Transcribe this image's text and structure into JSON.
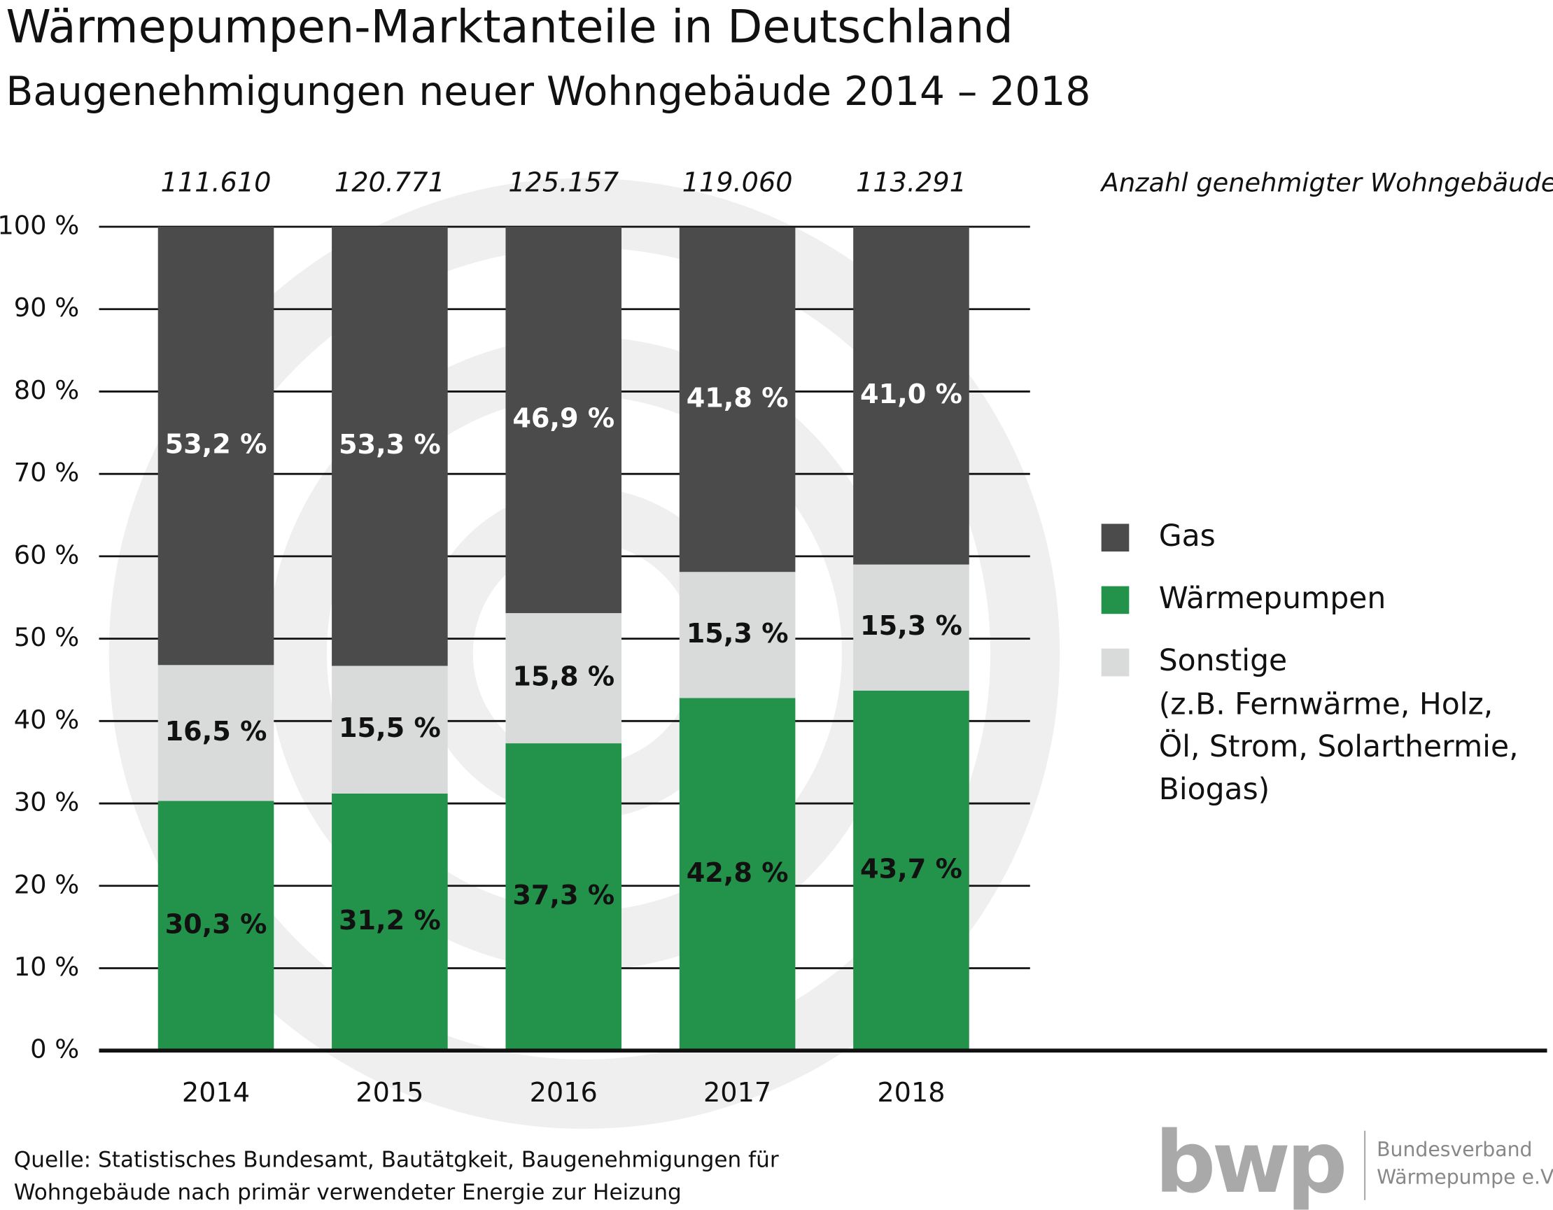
{
  "chart_data": {
    "type": "stacked_bar",
    "title": "Wärmepumpen-Marktanteile in Deutschland",
    "subtitle": "Baugenehmigungen neuer Wohngebäude 2014 – 2018",
    "categories": [
      "2014",
      "2015",
      "2016",
      "2017",
      "2018"
    ],
    "series": [
      {
        "name": "Gas",
        "color": "#4b4b4b",
        "values": [
          53.2,
          53.3,
          46.9,
          41.8,
          41.0
        ],
        "value_labels": [
          "53,2 %",
          "53,3 %",
          "46,9 %",
          "41,8 %",
          "41,0 %"
        ]
      },
      {
        "name": "Wärmepumpen",
        "color": "#23924a",
        "values": [
          30.3,
          31.2,
          37.3,
          42.8,
          43.7
        ],
        "value_labels": [
          "30,3 %",
          "31,2 %",
          "37,3 %",
          "42,8 %",
          "43,7 %"
        ]
      },
      {
        "name": "Sonstige",
        "color": "#d9dada",
        "values": [
          16.5,
          15.5,
          15.8,
          15.3,
          15.3
        ],
        "value_labels": [
          "16,5 %",
          "15,5 %",
          "15,8 %",
          "15,3 %",
          "15,3 %"
        ]
      }
    ],
    "legend_note": [
      "(z.B. Fernwärme, Holz,",
      "Öl, Strom, Solarthermie,",
      "Biogas)"
    ],
    "totals_label": "Anzahl genehmigter Wohngebäude",
    "totals": [
      {
        "value": 111610,
        "label": "111.610"
      },
      {
        "value": 120771,
        "label": "120.771"
      },
      {
        "value": 125157,
        "label": "125.157"
      },
      {
        "value": 119060,
        "label": "119.060"
      },
      {
        "value": 113291,
        "label": "113.291"
      }
    ],
    "ylim": [
      0,
      100
    ],
    "yticks": [
      {
        "value": 0,
        "label": "0 %"
      },
      {
        "value": 10,
        "label": "10 %"
      },
      {
        "value": 20,
        "label": "20 %"
      },
      {
        "value": 30,
        "label": "30 %"
      },
      {
        "value": 40,
        "label": "40 %"
      },
      {
        "value": 50,
        "label": "50 %"
      },
      {
        "value": 60,
        "label": "60 %"
      },
      {
        "value": 70,
        "label": "70 %"
      },
      {
        "value": 80,
        "label": "80 %"
      },
      {
        "value": 90,
        "label": "90 %"
      },
      {
        "value": 100,
        "label": "100 %"
      }
    ],
    "grid": true,
    "legend": "right",
    "source": [
      "Quelle: Statistisches Bundesamt, Bautätgkeit, Baugenehmigungen für",
      "Wohngebäude nach primär verwendeter Energie zur Heizung"
    ],
    "logo": {
      "mark": "bwp",
      "lines": [
        "Bundesverband",
        "Wärmepumpe e.V."
      ]
    }
  }
}
